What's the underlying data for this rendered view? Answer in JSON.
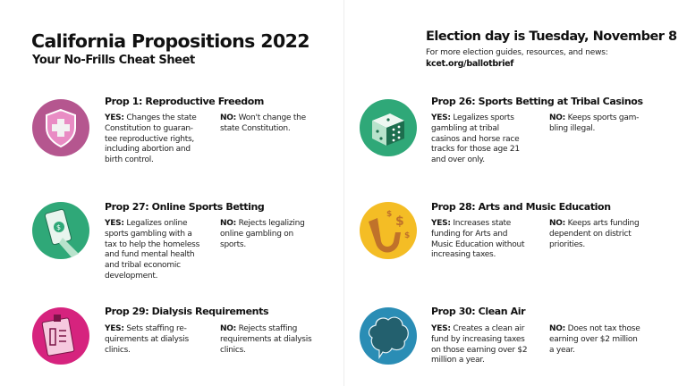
{
  "header": {
    "title": "California Propositions 2022",
    "subtitle": "Your No-Frills Cheat Sheet",
    "election_day": "Election day is Tuesday, November 8",
    "more_info": "For more election guides, resources, and news:",
    "link": "kcet.org/ballotbrief"
  },
  "labels": {
    "yes": "YES:",
    "no": "NO:"
  },
  "props": [
    {
      "icon": "shield-cross-icon",
      "color": "#b5568f",
      "title": "Prop 1: Reproductive Freedom",
      "yes": "Changes the state\nConstitution to guaran-\ntee reproductive rights,\nincluding abortion and\nbirth control.",
      "no": "Won't change the\nstate Constitution."
    },
    {
      "icon": "phone-money-icon",
      "color": "#2fa878",
      "title": "Prop 27: Online Sports Betting",
      "yes": "Legalizes online\nsports gambling with a\ntax to help the homeless\nand fund mental health\nand tribal economic\ndevelopment.",
      "no": "Rejects legalizing\nonline gambling on\nsports."
    },
    {
      "icon": "clipboard-icon",
      "color": "#d6237e",
      "title": "Prop 29: Dialysis Requirements",
      "yes": "Sets staffing re-\nquirements at dialysis\nclinics.",
      "no": "Rejects staffing\nrequirements at dialysis\nclinics."
    },
    {
      "icon": "dice-icon",
      "color": "#2fa878",
      "title": "Prop 26: Sports Betting at Tribal Casinos",
      "yes": "Legalizes sports\ngambling at tribal\ncasinos and horse race\ntracks for those age 21\nand over only.",
      "no": "Keeps sports gam-\nbling illegal."
    },
    {
      "icon": "saxophone-icon",
      "color": "#f4bd25",
      "title": "Prop 28: Arts and Music Education",
      "yes": "Increases state\nfunding for Arts and\nMusic Education without\nincreasing taxes.",
      "no": "Keeps arts funding\ndependent on district\npriorities."
    },
    {
      "icon": "cloud-icon",
      "color": "#2a8db5",
      "title": "Prop 30: Clean Air",
      "yes": "Creates a clean air\nfund by increasing taxes\non those earning over $2\nmillion a year.",
      "no": "Does not tax those\nearning over $2 million\na year."
    }
  ]
}
